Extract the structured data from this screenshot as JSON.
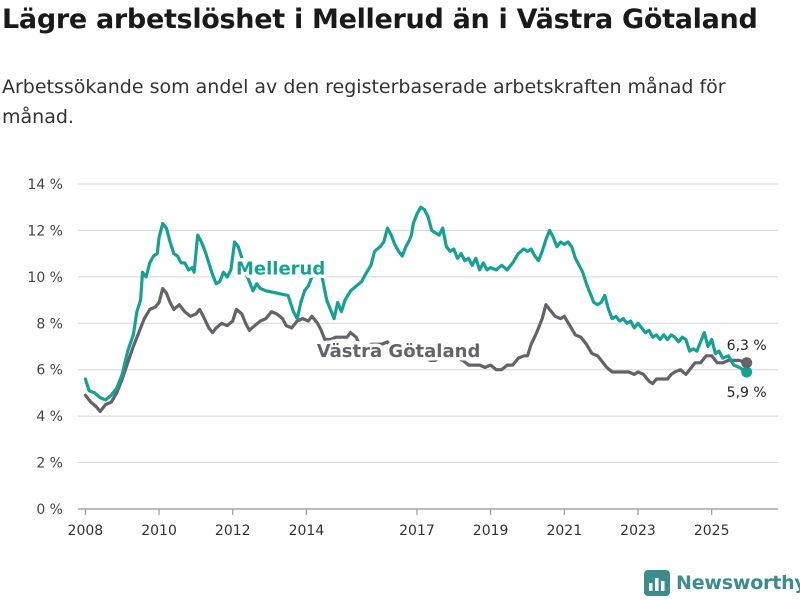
{
  "header": {
    "title": "Lägre arbetslöshet i Mellerud än i Västra Götaland",
    "subtitle": "Arbetssökande som andel av den registerbaserade arbetskraften månad för månad."
  },
  "brand": {
    "name": "Newsworthy",
    "color": "#3c8c8c",
    "icon": "bar-chart-logo-icon"
  },
  "colors": {
    "mellerud": "#17a095",
    "vastra": "#646369",
    "grid": "#dcdcdc",
    "axis": "#9a9a9a"
  },
  "chart_data": {
    "type": "line",
    "title": "Lägre arbetslöshet i Mellerud än i Västra Götaland",
    "xlabel": "",
    "ylabel": "",
    "xlim": [
      2007.8,
      2026.8
    ],
    "ylim": [
      0,
      14
    ],
    "y_ticks": [
      0,
      2,
      4,
      6,
      8,
      10,
      12,
      14
    ],
    "y_tick_labels": [
      "0 %",
      "2 %",
      "4 %",
      "6 %",
      "8 %",
      "10 %",
      "12 %",
      "14 %"
    ],
    "x_ticks": [
      2008,
      2010,
      2012,
      2014,
      2017,
      2019,
      2021,
      2023,
      2025
    ],
    "x_tick_labels": [
      "2008",
      "2010",
      "2012",
      "2014",
      "2017",
      "2019",
      "2021",
      "2023",
      "2025"
    ],
    "grid": true,
    "series": [
      {
        "name": "Mellerud",
        "color": "#17a095",
        "label_position": [
          2013.3,
          10.1
        ],
        "end_label": "5,9 %",
        "points": [
          [
            2008.0,
            5.6
          ],
          [
            2008.1,
            5.1
          ],
          [
            2008.25,
            5.0
          ],
          [
            2008.4,
            4.8
          ],
          [
            2008.55,
            4.7
          ],
          [
            2008.7,
            4.9
          ],
          [
            2008.85,
            5.2
          ],
          [
            2009.0,
            5.8
          ],
          [
            2009.15,
            6.8
          ],
          [
            2009.3,
            7.5
          ],
          [
            2009.4,
            8.5
          ],
          [
            2009.5,
            9.0
          ],
          [
            2009.55,
            10.2
          ],
          [
            2009.65,
            10.0
          ],
          [
            2009.75,
            10.6
          ],
          [
            2009.85,
            10.9
          ],
          [
            2009.95,
            11.0
          ],
          [
            2010.0,
            11.7
          ],
          [
            2010.1,
            12.3
          ],
          [
            2010.2,
            12.1
          ],
          [
            2010.3,
            11.5
          ],
          [
            2010.4,
            11.0
          ],
          [
            2010.5,
            10.9
          ],
          [
            2010.6,
            10.6
          ],
          [
            2010.7,
            10.6
          ],
          [
            2010.8,
            10.3
          ],
          [
            2010.9,
            10.4
          ],
          [
            2010.95,
            10.2
          ],
          [
            2011.05,
            11.8
          ],
          [
            2011.15,
            11.5
          ],
          [
            2011.25,
            11.1
          ],
          [
            2011.35,
            10.6
          ],
          [
            2011.45,
            10.1
          ],
          [
            2011.55,
            9.7
          ],
          [
            2011.65,
            9.8
          ],
          [
            2011.75,
            10.2
          ],
          [
            2011.85,
            10.0
          ],
          [
            2011.95,
            10.3
          ],
          [
            2012.05,
            11.5
          ],
          [
            2012.15,
            11.3
          ],
          [
            2012.25,
            10.8
          ],
          [
            2012.35,
            10.2
          ],
          [
            2012.45,
            9.8
          ],
          [
            2012.55,
            9.4
          ],
          [
            2012.65,
            9.7
          ],
          [
            2012.75,
            9.5
          ],
          [
            2012.9,
            9.4
          ],
          [
            2013.5,
            9.2
          ],
          [
            2013.65,
            8.5
          ],
          [
            2013.75,
            8.2
          ],
          [
            2013.85,
            8.9
          ],
          [
            2013.95,
            9.4
          ],
          [
            2014.05,
            9.6
          ],
          [
            2014.15,
            10.0
          ],
          [
            2014.25,
            10.3
          ],
          [
            2014.35,
            10.5
          ],
          [
            2014.45,
            9.8
          ],
          [
            2014.55,
            9.0
          ],
          [
            2014.65,
            8.6
          ],
          [
            2014.75,
            8.2
          ],
          [
            2014.85,
            8.9
          ],
          [
            2014.95,
            8.5
          ],
          [
            2015.05,
            9.0
          ],
          [
            2015.2,
            9.4
          ],
          [
            2015.35,
            9.6
          ],
          [
            2015.5,
            9.8
          ],
          [
            2015.6,
            10.1
          ],
          [
            2015.75,
            10.5
          ],
          [
            2015.85,
            11.1
          ],
          [
            2016.0,
            11.3
          ],
          [
            2016.1,
            11.5
          ],
          [
            2016.2,
            12.1
          ],
          [
            2016.3,
            11.8
          ],
          [
            2016.4,
            11.4
          ],
          [
            2016.5,
            11.1
          ],
          [
            2016.6,
            10.9
          ],
          [
            2016.7,
            11.3
          ],
          [
            2016.8,
            11.6
          ],
          [
            2016.85,
            11.8
          ],
          [
            2016.9,
            12.3
          ],
          [
            2017.0,
            12.7
          ],
          [
            2017.1,
            13.0
          ],
          [
            2017.2,
            12.9
          ],
          [
            2017.3,
            12.6
          ],
          [
            2017.4,
            12.0
          ],
          [
            2017.5,
            11.9
          ],
          [
            2017.6,
            11.8
          ],
          [
            2017.7,
            12.1
          ],
          [
            2017.8,
            11.3
          ],
          [
            2017.9,
            11.1
          ],
          [
            2018.0,
            11.2
          ],
          [
            2018.1,
            10.8
          ],
          [
            2018.2,
            11.0
          ],
          [
            2018.3,
            10.7
          ],
          [
            2018.4,
            10.8
          ],
          [
            2018.5,
            10.5
          ],
          [
            2018.6,
            10.8
          ],
          [
            2018.7,
            10.3
          ],
          [
            2018.8,
            10.6
          ],
          [
            2018.9,
            10.3
          ],
          [
            2019.0,
            10.4
          ],
          [
            2019.15,
            10.3
          ],
          [
            2019.3,
            10.5
          ],
          [
            2019.45,
            10.3
          ],
          [
            2019.6,
            10.6
          ],
          [
            2019.75,
            11.0
          ],
          [
            2019.9,
            11.2
          ],
          [
            2020.0,
            11.1
          ],
          [
            2020.1,
            11.2
          ],
          [
            2020.2,
            10.9
          ],
          [
            2020.3,
            10.7
          ],
          [
            2020.4,
            11.1
          ],
          [
            2020.5,
            11.6
          ],
          [
            2020.6,
            12.0
          ],
          [
            2020.7,
            11.7
          ],
          [
            2020.8,
            11.3
          ],
          [
            2020.9,
            11.5
          ],
          [
            2021.0,
            11.4
          ],
          [
            2021.1,
            11.5
          ],
          [
            2021.2,
            11.3
          ],
          [
            2021.3,
            10.8
          ],
          [
            2021.4,
            10.5
          ],
          [
            2021.5,
            10.2
          ],
          [
            2021.6,
            9.7
          ],
          [
            2021.7,
            9.3
          ],
          [
            2021.8,
            8.9
          ],
          [
            2021.9,
            8.8
          ],
          [
            2022.0,
            8.9
          ],
          [
            2022.1,
            9.2
          ],
          [
            2022.2,
            8.6
          ],
          [
            2022.3,
            8.2
          ],
          [
            2022.4,
            8.3
          ],
          [
            2022.5,
            8.1
          ],
          [
            2022.6,
            8.2
          ],
          [
            2022.7,
            8.0
          ],
          [
            2022.8,
            8.1
          ],
          [
            2022.9,
            7.8
          ],
          [
            2023.0,
            8.0
          ],
          [
            2023.1,
            7.8
          ],
          [
            2023.2,
            7.6
          ],
          [
            2023.3,
            7.7
          ],
          [
            2023.4,
            7.4
          ],
          [
            2023.5,
            7.5
          ],
          [
            2023.6,
            7.3
          ],
          [
            2023.7,
            7.5
          ],
          [
            2023.8,
            7.3
          ],
          [
            2023.9,
            7.5
          ],
          [
            2024.0,
            7.4
          ],
          [
            2024.1,
            7.2
          ],
          [
            2024.2,
            7.4
          ],
          [
            2024.3,
            7.3
          ],
          [
            2024.4,
            6.8
          ],
          [
            2024.5,
            6.9
          ],
          [
            2024.6,
            6.8
          ],
          [
            2024.7,
            7.2
          ],
          [
            2024.8,
            7.6
          ],
          [
            2024.9,
            7.0
          ],
          [
            2025.0,
            7.3
          ],
          [
            2025.1,
            6.7
          ],
          [
            2025.2,
            6.8
          ],
          [
            2025.3,
            6.5
          ],
          [
            2025.45,
            6.6
          ],
          [
            2025.6,
            6.2
          ],
          [
            2025.75,
            6.1
          ],
          [
            2025.95,
            5.9
          ]
        ]
      },
      {
        "name": "Västra Götaland",
        "color": "#646369",
        "label_position": [
          2016.5,
          6.55
        ],
        "end_label": "6,3 %",
        "points": [
          [
            2008.0,
            4.9
          ],
          [
            2008.15,
            4.6
          ],
          [
            2008.3,
            4.4
          ],
          [
            2008.4,
            4.2
          ],
          [
            2008.55,
            4.5
          ],
          [
            2008.7,
            4.6
          ],
          [
            2008.85,
            5.0
          ],
          [
            2009.0,
            5.6
          ],
          [
            2009.15,
            6.3
          ],
          [
            2009.3,
            7.0
          ],
          [
            2009.45,
            7.6
          ],
          [
            2009.6,
            8.2
          ],
          [
            2009.75,
            8.6
          ],
          [
            2009.9,
            8.7
          ],
          [
            2010.0,
            8.9
          ],
          [
            2010.1,
            9.5
          ],
          [
            2010.2,
            9.3
          ],
          [
            2010.3,
            8.9
          ],
          [
            2010.4,
            8.6
          ],
          [
            2010.55,
            8.8
          ],
          [
            2010.7,
            8.5
          ],
          [
            2010.85,
            8.3
          ],
          [
            2011.0,
            8.4
          ],
          [
            2011.1,
            8.6
          ],
          [
            2011.2,
            8.3
          ],
          [
            2011.35,
            7.8
          ],
          [
            2011.45,
            7.6
          ],
          [
            2011.55,
            7.8
          ],
          [
            2011.7,
            8.0
          ],
          [
            2011.85,
            7.9
          ],
          [
            2012.0,
            8.1
          ],
          [
            2012.1,
            8.6
          ],
          [
            2012.25,
            8.4
          ],
          [
            2012.35,
            8.0
          ],
          [
            2012.45,
            7.7
          ],
          [
            2012.6,
            7.9
          ],
          [
            2012.75,
            8.1
          ],
          [
            2012.9,
            8.2
          ],
          [
            2013.05,
            8.5
          ],
          [
            2013.2,
            8.4
          ],
          [
            2013.35,
            8.2
          ],
          [
            2013.45,
            7.9
          ],
          [
            2013.6,
            7.8
          ],
          [
            2013.75,
            8.1
          ],
          [
            2013.9,
            8.2
          ],
          [
            2014.05,
            8.1
          ],
          [
            2014.15,
            8.3
          ],
          [
            2014.3,
            8.0
          ],
          [
            2014.4,
            7.7
          ],
          [
            2014.5,
            7.3
          ],
          [
            2014.65,
            7.3
          ],
          [
            2014.8,
            7.4
          ],
          [
            2014.95,
            7.4
          ],
          [
            2015.1,
            7.4
          ],
          [
            2015.2,
            7.6
          ],
          [
            2015.35,
            7.4
          ],
          [
            2015.45,
            7.0
          ],
          [
            2015.6,
            6.9
          ],
          [
            2015.75,
            7.1
          ],
          [
            2015.9,
            7.1
          ],
          [
            2016.05,
            7.1
          ],
          [
            2016.2,
            7.2
          ],
          [
            2016.35,
            6.8
          ],
          [
            2016.45,
            6.6
          ],
          [
            2016.6,
            6.6
          ],
          [
            2016.75,
            6.8
          ],
          [
            2016.9,
            6.8
          ],
          [
            2017.05,
            6.9
          ],
          [
            2017.2,
            6.6
          ],
          [
            2017.35,
            6.4
          ],
          [
            2017.5,
            6.4
          ],
          [
            2017.65,
            6.6
          ],
          [
            2017.8,
            6.6
          ],
          [
            2017.95,
            6.5
          ],
          [
            2018.1,
            6.5
          ],
          [
            2018.25,
            6.4
          ],
          [
            2018.4,
            6.2
          ],
          [
            2018.55,
            6.2
          ],
          [
            2018.7,
            6.2
          ],
          [
            2018.85,
            6.1
          ],
          [
            2019.0,
            6.2
          ],
          [
            2019.15,
            6.0
          ],
          [
            2019.3,
            6.0
          ],
          [
            2019.45,
            6.2
          ],
          [
            2019.6,
            6.2
          ],
          [
            2019.75,
            6.5
          ],
          [
            2019.9,
            6.6
          ],
          [
            2020.0,
            6.6
          ],
          [
            2020.1,
            7.1
          ],
          [
            2020.25,
            7.6
          ],
          [
            2020.4,
            8.2
          ],
          [
            2020.5,
            8.8
          ],
          [
            2020.6,
            8.6
          ],
          [
            2020.75,
            8.3
          ],
          [
            2020.9,
            8.2
          ],
          [
            2021.0,
            8.3
          ],
          [
            2021.15,
            7.9
          ],
          [
            2021.3,
            7.5
          ],
          [
            2021.45,
            7.4
          ],
          [
            2021.6,
            7.1
          ],
          [
            2021.75,
            6.7
          ],
          [
            2021.9,
            6.6
          ],
          [
            2022.0,
            6.4
          ],
          [
            2022.15,
            6.1
          ],
          [
            2022.3,
            5.9
          ],
          [
            2022.45,
            5.9
          ],
          [
            2022.6,
            5.9
          ],
          [
            2022.75,
            5.9
          ],
          [
            2022.9,
            5.8
          ],
          [
            2023.0,
            5.9
          ],
          [
            2023.15,
            5.8
          ],
          [
            2023.3,
            5.5
          ],
          [
            2023.4,
            5.4
          ],
          [
            2023.5,
            5.6
          ],
          [
            2023.65,
            5.6
          ],
          [
            2023.8,
            5.6
          ],
          [
            2023.9,
            5.8
          ],
          [
            2024.0,
            5.9
          ],
          [
            2024.15,
            6.0
          ],
          [
            2024.3,
            5.8
          ],
          [
            2024.4,
            6.0
          ],
          [
            2024.55,
            6.3
          ],
          [
            2024.7,
            6.3
          ],
          [
            2024.85,
            6.6
          ],
          [
            2025.0,
            6.6
          ],
          [
            2025.15,
            6.3
          ],
          [
            2025.3,
            6.3
          ],
          [
            2025.45,
            6.4
          ],
          [
            2025.6,
            6.4
          ],
          [
            2025.75,
            6.4
          ],
          [
            2025.95,
            6.3
          ]
        ]
      }
    ]
  }
}
